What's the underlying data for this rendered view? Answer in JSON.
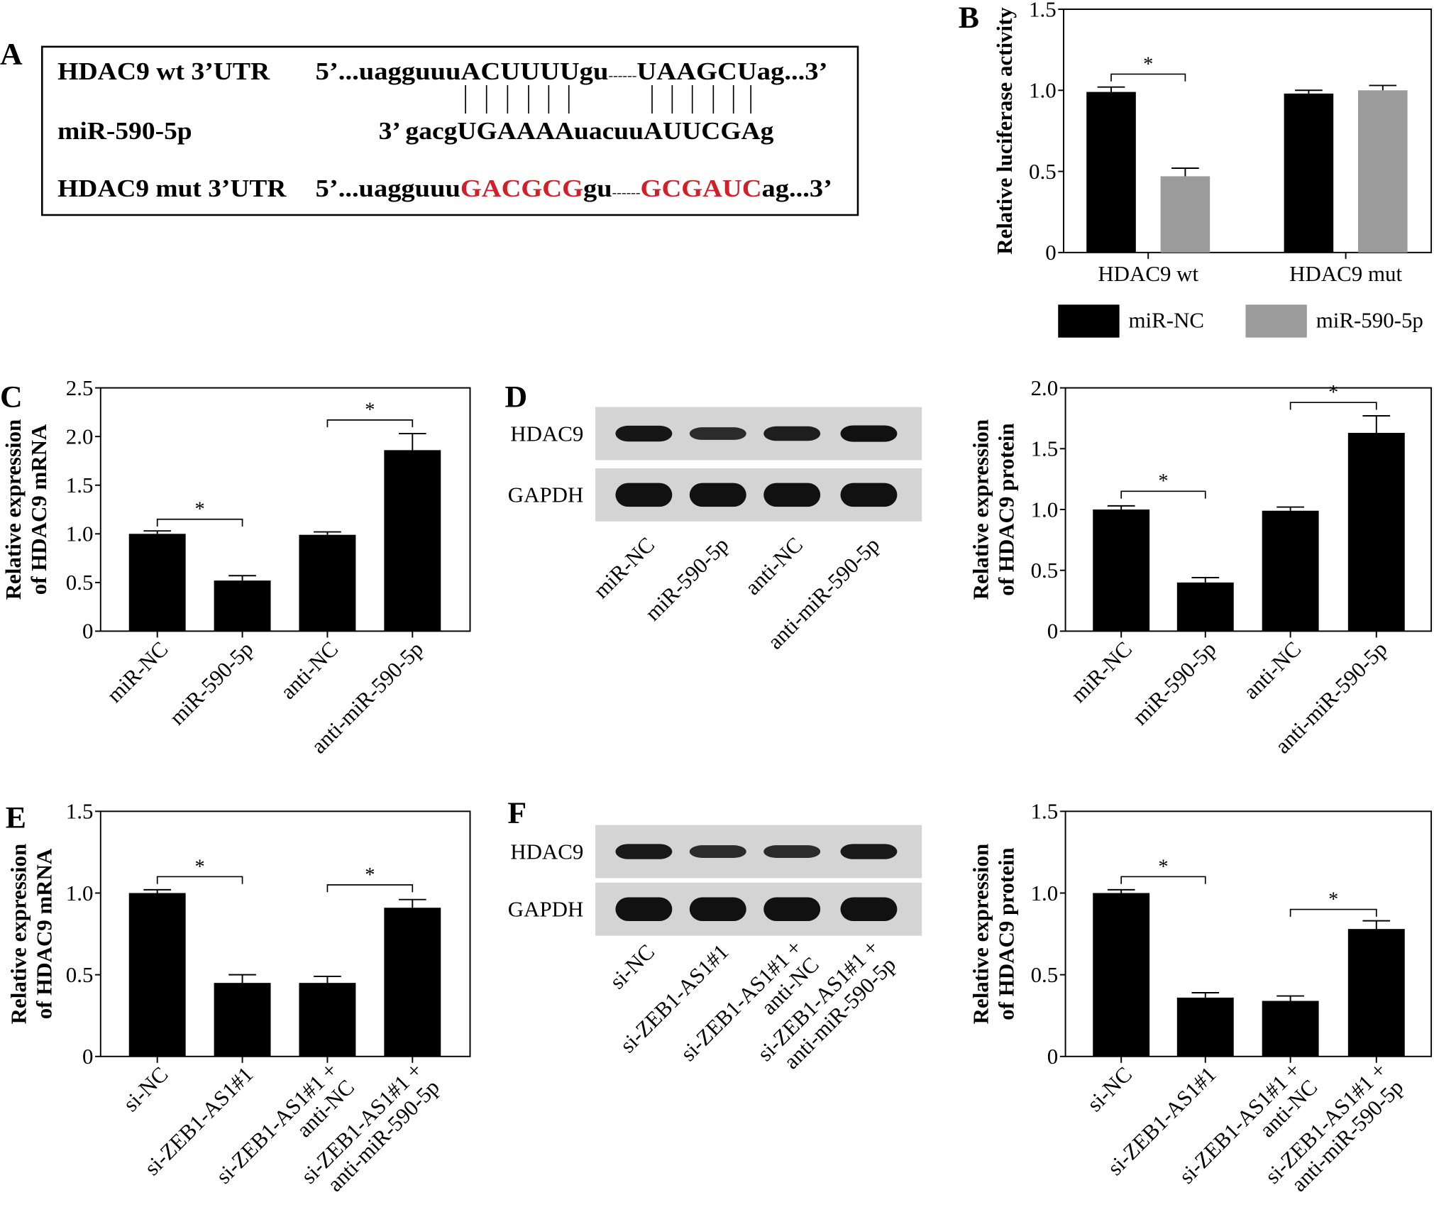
{
  "panel_letters": [
    "A",
    "B",
    "C",
    "D",
    "E",
    "F"
  ],
  "panel_a": {
    "rows": [
      {
        "label": "HDAC9 wt 3’UTR",
        "segments": [
          {
            "t": "5’...uagguuu",
            "red": false
          },
          {
            "t": "ACUUUU",
            "red": false
          },
          {
            "t": "gu",
            "red": false
          },
          {
            "t": "------",
            "red": false,
            "dash": true
          },
          {
            "t": "UAAGCU",
            "red": false
          },
          {
            "t": "ag...3’",
            "red": false
          }
        ]
      },
      {
        "label": "miR-590-5p",
        "segments": [
          {
            "t": "3’ gacgUGAAAAuacuuAUUCGAg",
            "red": false
          }
        ]
      },
      {
        "label": "HDAC9 mut 3’UTR",
        "segments": [
          {
            "t": "5’...uagguuu",
            "red": false
          },
          {
            "t": "GACGCG",
            "red": true
          },
          {
            "t": "gu",
            "red": false
          },
          {
            "t": "------",
            "red": false,
            "dash": true
          },
          {
            "t": "GCGAUC",
            "red": true
          },
          {
            "t": "ag...3’",
            "red": false
          }
        ]
      }
    ],
    "pair_count": [
      6,
      6
    ],
    "mutation_color": "#d0202a"
  },
  "blots": [
    {
      "panel": "D",
      "rows": [
        "HDAC9",
        "GAPDH"
      ],
      "lanes": [
        [
          "miR-NC"
        ],
        [
          "miR-590-5p"
        ],
        [
          "anti-NC"
        ],
        [
          "anti-miR-590-5p"
        ]
      ],
      "band_strength": [
        [
          0.95,
          0.7,
          0.85,
          1.0
        ],
        [
          1,
          1,
          1,
          1
        ]
      ]
    },
    {
      "panel": "F",
      "rows": [
        "HDAC9",
        "GAPDH"
      ],
      "lanes": [
        [
          "si-NC"
        ],
        [
          "si-ZEB1-AS1#1"
        ],
        [
          "si-ZEB1-AS1#1 +",
          "anti-NC"
        ],
        [
          "si-ZEB1-AS1#1 +",
          "anti-miR-590-5p"
        ]
      ],
      "band_strength": [
        [
          0.9,
          0.7,
          0.7,
          0.9
        ],
        [
          1,
          1,
          1,
          1
        ]
      ]
    }
  ],
  "chart_data": [
    {
      "panel": "B",
      "type": "bar",
      "ylabel": [
        "Relative luciferase activity"
      ],
      "ylim": [
        0,
        1.5
      ],
      "ticks": [
        0,
        0.5,
        1.0,
        1.5
      ],
      "tick_labels": [
        "0",
        "0.5",
        "1.0",
        "1.5"
      ],
      "categories": [
        "HDAC9 wt",
        "HDAC9 mut"
      ],
      "series": [
        {
          "name": "miR-NC",
          "color": "#000000",
          "values": [
            0.99,
            0.98
          ],
          "errors": [
            0.03,
            0.02
          ]
        },
        {
          "name": "miR-590-5p",
          "color": "#9b9b9b",
          "values": [
            0.47,
            1.0
          ],
          "errors": [
            0.05,
            0.03
          ]
        }
      ],
      "significance": [
        {
          "bars": [
            0,
            1
          ],
          "level": 1.1,
          "label": "*"
        }
      ],
      "legend": "bottom"
    },
    {
      "panel": "C",
      "type": "bar",
      "ylabel": [
        "Relative expression",
        "of HDAC9 mRNA"
      ],
      "ylim": [
        0,
        2.5
      ],
      "ticks": [
        0,
        0.5,
        1.0,
        1.5,
        2.0,
        2.5
      ],
      "tick_labels": [
        "0",
        "0.5",
        "1.0",
        "1.5",
        "2.0",
        "2.5"
      ],
      "categories": [
        [
          "miR-NC"
        ],
        [
          "miR-590-5p"
        ],
        [
          "anti-NC"
        ],
        [
          "anti-miR-590-5p"
        ]
      ],
      "values": [
        1.0,
        0.52,
        0.99,
        1.86
      ],
      "errors": [
        0.03,
        0.05,
        0.03,
        0.17
      ],
      "color": "#000000",
      "significance": [
        {
          "bars": [
            0,
            1
          ],
          "level": 1.15,
          "label": "*"
        },
        {
          "bars": [
            2,
            3
          ],
          "level": 2.17,
          "label": "*"
        }
      ]
    },
    {
      "panel": "D",
      "type": "bar",
      "ylabel": [
        "Relative expression",
        "of HDAC9 protein"
      ],
      "ylim": [
        0,
        2.0
      ],
      "ticks": [
        0,
        0.5,
        1.0,
        1.5,
        2.0
      ],
      "tick_labels": [
        "0",
        "0.5",
        "1.0",
        "1.5",
        "2.0"
      ],
      "categories": [
        [
          "miR-NC"
        ],
        [
          "miR-590-5p"
        ],
        [
          "anti-NC"
        ],
        [
          "anti-miR-590-5p"
        ]
      ],
      "values": [
        1.0,
        0.4,
        0.99,
        1.63
      ],
      "errors": [
        0.03,
        0.04,
        0.03,
        0.14
      ],
      "color": "#000000",
      "significance": [
        {
          "bars": [
            0,
            1
          ],
          "level": 1.15,
          "label": "*"
        },
        {
          "bars": [
            2,
            3
          ],
          "level": 1.88,
          "label": "*"
        }
      ]
    },
    {
      "panel": "E",
      "type": "bar",
      "ylabel": [
        "Relative expression",
        "of HDAC9 mRNA"
      ],
      "ylim": [
        0,
        1.5
      ],
      "ticks": [
        0,
        0.5,
        1.0,
        1.5
      ],
      "tick_labels": [
        "0",
        "0.5",
        "1.0",
        "1.5"
      ],
      "categories": [
        [
          "si-NC"
        ],
        [
          "si-ZEB1-AS1#1"
        ],
        [
          "si-ZEB1-AS1#1 +",
          "anti-NC"
        ],
        [
          "si-ZEB1-AS1#1 +",
          "anti-miR-590-5p"
        ]
      ],
      "values": [
        1.0,
        0.45,
        0.45,
        0.91
      ],
      "errors": [
        0.02,
        0.05,
        0.04,
        0.05
      ],
      "color": "#000000",
      "significance": [
        {
          "bars": [
            0,
            1
          ],
          "level": 1.1,
          "label": "*"
        },
        {
          "bars": [
            2,
            3
          ],
          "level": 1.05,
          "label": "*"
        }
      ]
    },
    {
      "panel": "F",
      "type": "bar",
      "ylabel": [
        "Relative expression",
        "of HDAC9 protein"
      ],
      "ylim": [
        0,
        1.5
      ],
      "ticks": [
        0,
        0.5,
        1.0,
        1.5
      ],
      "tick_labels": [
        "0",
        "0.5",
        "1.0",
        "1.5"
      ],
      "categories": [
        [
          "si-NC"
        ],
        [
          "si-ZEB1-AS1#1"
        ],
        [
          "si-ZEB1-AS1#1 +",
          "anti-NC"
        ],
        [
          "si-ZEB1-AS1#1 +",
          "anti-miR-590-5p"
        ]
      ],
      "values": [
        1.0,
        0.36,
        0.34,
        0.78
      ],
      "errors": [
        0.02,
        0.03,
        0.03,
        0.05
      ],
      "color": "#000000",
      "significance": [
        {
          "bars": [
            0,
            1
          ],
          "level": 1.1,
          "label": "*"
        },
        {
          "bars": [
            2,
            3
          ],
          "level": 0.9,
          "label": "*"
        }
      ]
    }
  ]
}
